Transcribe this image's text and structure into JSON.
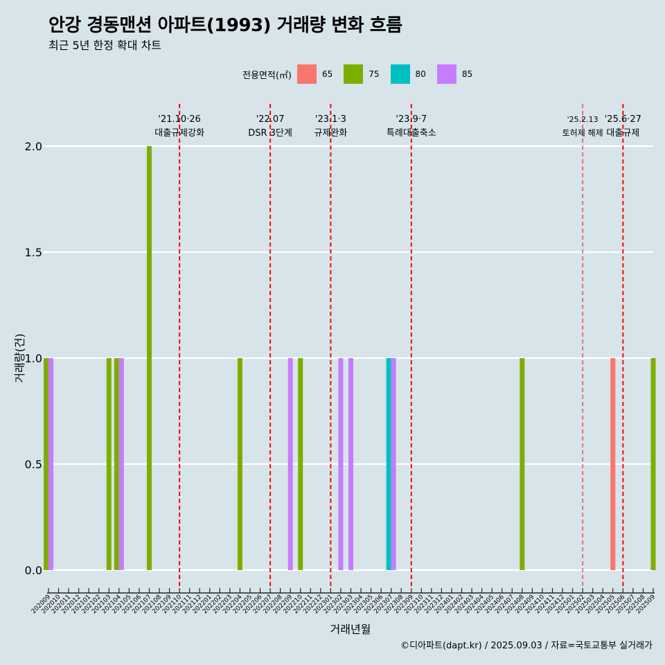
{
  "title": "안강 경동맨션 아파트(1993) 거래량 변화 흐름",
  "subtitle": "최근 5년 한정 확대 차트",
  "caption": "©디아파트(dapt.kr) / 2025.09.03 / 자료=국토교통부 실거래가",
  "legend": {
    "title": "전용면적(㎡)",
    "items": [
      {
        "label": "65",
        "color": "#f8766d"
      },
      {
        "label": "75",
        "color": "#7cae00"
      },
      {
        "label": "80",
        "color": "#00bfc4"
      },
      {
        "label": "85",
        "color": "#c77cff"
      }
    ]
  },
  "chart_data": {
    "type": "bar",
    "xlabel": "거래년월",
    "ylabel": "거래량(건)",
    "ylim": [
      0,
      2.15
    ],
    "yticks": [
      "0.0",
      "0.5",
      "1.0",
      "1.5",
      "2.0"
    ],
    "grid": true,
    "legend_position": "top",
    "categories": [
      "202009",
      "202010",
      "202011",
      "202012",
      "202101",
      "202102",
      "202103",
      "202104",
      "202105",
      "202106",
      "202107",
      "202108",
      "202109",
      "202110",
      "202111",
      "202112",
      "202201",
      "202202",
      "202203",
      "202204",
      "202205",
      "202206",
      "202207",
      "202208",
      "202209",
      "202210",
      "202211",
      "202212",
      "202301",
      "202302",
      "202303",
      "202304",
      "202305",
      "202306",
      "202307",
      "202308",
      "202309",
      "202310",
      "202311",
      "202312",
      "202401",
      "202402",
      "202403",
      "202404",
      "202405",
      "202406",
      "202407",
      "202408",
      "202409",
      "202410",
      "202411",
      "202412",
      "202501",
      "202502",
      "202503",
      "202504",
      "202505",
      "202506",
      "202507",
      "202508",
      "202509"
    ],
    "series": [
      {
        "name": "65",
        "values": [
          0,
          0,
          0,
          0,
          0,
          0,
          0,
          0,
          0,
          0,
          0,
          0,
          0,
          0,
          0,
          0,
          0,
          0,
          0,
          0,
          0,
          0,
          0,
          0,
          0,
          0,
          0,
          0,
          0,
          0,
          0,
          0,
          0,
          0,
          0,
          0,
          0,
          0,
          0,
          0,
          0,
          0,
          0,
          0,
          0,
          0,
          0,
          0,
          0,
          0,
          0,
          0,
          0,
          0,
          0,
          0,
          1,
          0,
          0,
          0,
          0
        ]
      },
      {
        "name": "75",
        "values": [
          1,
          0,
          0,
          0,
          0,
          0,
          1,
          1,
          0,
          0,
          2,
          0,
          0,
          0,
          0,
          0,
          0,
          0,
          0,
          1,
          0,
          0,
          0,
          0,
          0,
          1,
          0,
          0,
          0,
          0,
          0,
          0,
          0,
          0,
          0,
          0,
          0,
          0,
          0,
          0,
          0,
          0,
          0,
          0,
          0,
          0,
          0,
          1,
          0,
          0,
          0,
          0,
          0,
          0,
          0,
          0,
          0,
          0,
          0,
          0,
          1
        ]
      },
      {
        "name": "80",
        "values": [
          0,
          0,
          0,
          0,
          0,
          0,
          0,
          0,
          0,
          0,
          0,
          0,
          0,
          0,
          0,
          0,
          0,
          0,
          0,
          0,
          0,
          0,
          0,
          0,
          0,
          0,
          0,
          0,
          0,
          0,
          0,
          0,
          0,
          0,
          1,
          0,
          0,
          0,
          0,
          0,
          0,
          0,
          0,
          0,
          0,
          0,
          0,
          0,
          0,
          0,
          0,
          0,
          0,
          0,
          0,
          0,
          0,
          0,
          0,
          0,
          0
        ]
      },
      {
        "name": "85",
        "values": [
          1,
          0,
          0,
          0,
          0,
          0,
          0,
          1,
          0,
          0,
          0,
          0,
          0,
          0,
          0,
          0,
          0,
          0,
          0,
          0,
          0,
          0,
          0,
          0,
          1,
          0,
          0,
          0,
          0,
          1,
          1,
          0,
          0,
          0,
          1,
          0,
          0,
          0,
          0,
          0,
          0,
          0,
          0,
          0,
          0,
          0,
          0,
          0,
          0,
          0,
          0,
          0,
          0,
          0,
          0,
          0,
          0,
          0,
          0,
          0,
          0
        ]
      }
    ],
    "annotations": [
      {
        "at": "202110",
        "label_top": "'21.10·26",
        "label_bottom": "대출규제강화"
      },
      {
        "at": "202207",
        "label_top": "'22.07",
        "label_bottom": "DSR 3단계"
      },
      {
        "at": "202301",
        "label_top": "'23.1·3",
        "label_bottom": "규제완화"
      },
      {
        "at": "202309",
        "label_top": "'23.9·7",
        "label_bottom": "특례대출축소"
      },
      {
        "at": "202502",
        "label_top": "'25.2.13",
        "label_bottom": "토허제 해제"
      },
      {
        "at": "202506",
        "label_top": "'25.6·27",
        "label_bottom": "대출규제"
      }
    ]
  }
}
